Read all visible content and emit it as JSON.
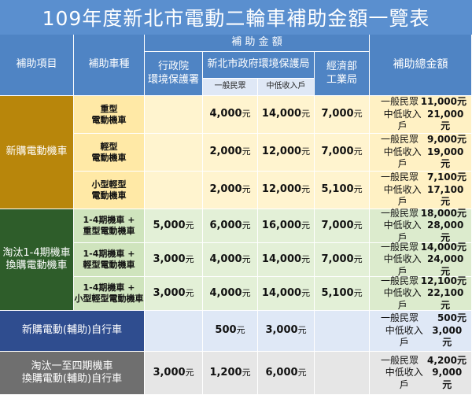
{
  "title": "109年度新北市電動二輪車補助金額一覽表",
  "header": {
    "item": "補助項目",
    "vehicle_type": "補助車種",
    "subsidy_amount": "補 助 金 額",
    "epa_line1": "行政院",
    "epa_line2": "環境保護署",
    "ntpc": "新北市政府環境保護局",
    "moea_line1": "經濟部",
    "moea_line2": "工業局",
    "total": "補助總金額",
    "general": "一般民眾",
    "low_mid": "中低收入戶"
  },
  "unit": "元",
  "groups": {
    "new_motor": "新購電動機車",
    "replace_motor_line1": "淘汰1-4期機車",
    "replace_motor_line2": "換購電動機車",
    "new_bike": "新購電動(輔助)自行車",
    "replace_bike_line1": "淘汰一至四期機車",
    "replace_bike_line2": "換購電動(輔助)自行車"
  },
  "rows": [
    {
      "type1": "重型",
      "type2": "電動機車",
      "epa": "",
      "gen": "4,000",
      "low": "14,000",
      "moea": "7,000",
      "tot_gen_lbl": "一般民眾",
      "tot_gen": "11,000元",
      "tot_low_lbl": "中低收入戶",
      "tot_low": "21,000元"
    },
    {
      "type1": "輕型",
      "type2": "電動機車",
      "epa": "",
      "gen": "2,000",
      "low": "12,000",
      "moea": "7,000",
      "tot_gen_lbl": "一般民眾",
      "tot_gen": "9,000元",
      "tot_low_lbl": "中低收入戶",
      "tot_low": "19,000元"
    },
    {
      "type1": "小型輕型",
      "type2": "電動機車",
      "epa": "",
      "gen": "2,000",
      "low": "12,000",
      "moea": "5,100",
      "tot_gen_lbl": "一般民眾",
      "tot_gen": "7,100元",
      "tot_low_lbl": "中低收入戶",
      "tot_low": "17,100元"
    },
    {
      "type1": "1-4期機車 +",
      "type2": "重型電動機車",
      "epa": "5,000",
      "gen": "6,000",
      "low": "16,000",
      "moea": "7,000",
      "tot_gen_lbl": "一般民眾",
      "tot_gen": "18,000元",
      "tot_low_lbl": "中低收入戶",
      "tot_low": "28,000元"
    },
    {
      "type1": "1-4期機車 +",
      "type2": "輕型電動機車",
      "epa": "3,000",
      "gen": "4,000",
      "low": "14,000",
      "moea": "7,000",
      "tot_gen_lbl": "一般民眾",
      "tot_gen": "14,000元",
      "tot_low_lbl": "中低收入戶",
      "tot_low": "24,000元"
    },
    {
      "type1": "1-4期機車 +",
      "type2": "小型輕型電動機車",
      "epa": "3,000",
      "gen": "4,000",
      "low": "14,000",
      "moea": "5,100",
      "tot_gen_lbl": "一般民眾",
      "tot_gen": "12,100元",
      "tot_low_lbl": "中低收入戶",
      "tot_low": "22,100元"
    },
    {
      "type1": "",
      "type2": "",
      "epa": "",
      "gen": "500",
      "low": "3,000",
      "moea": "",
      "tot_gen_lbl": "一般民眾",
      "tot_gen": "500元",
      "tot_low_lbl": "中低收入戶",
      "tot_low": "3,000元"
    },
    {
      "type1": "",
      "type2": "",
      "epa": "3,000",
      "gen": "1,200",
      "low": "6,000",
      "moea": "",
      "tot_gen_lbl": "一般民眾",
      "tot_gen": "4,200元",
      "tot_low_lbl": "中低收入戶",
      "tot_low": "9,000元"
    }
  ]
}
